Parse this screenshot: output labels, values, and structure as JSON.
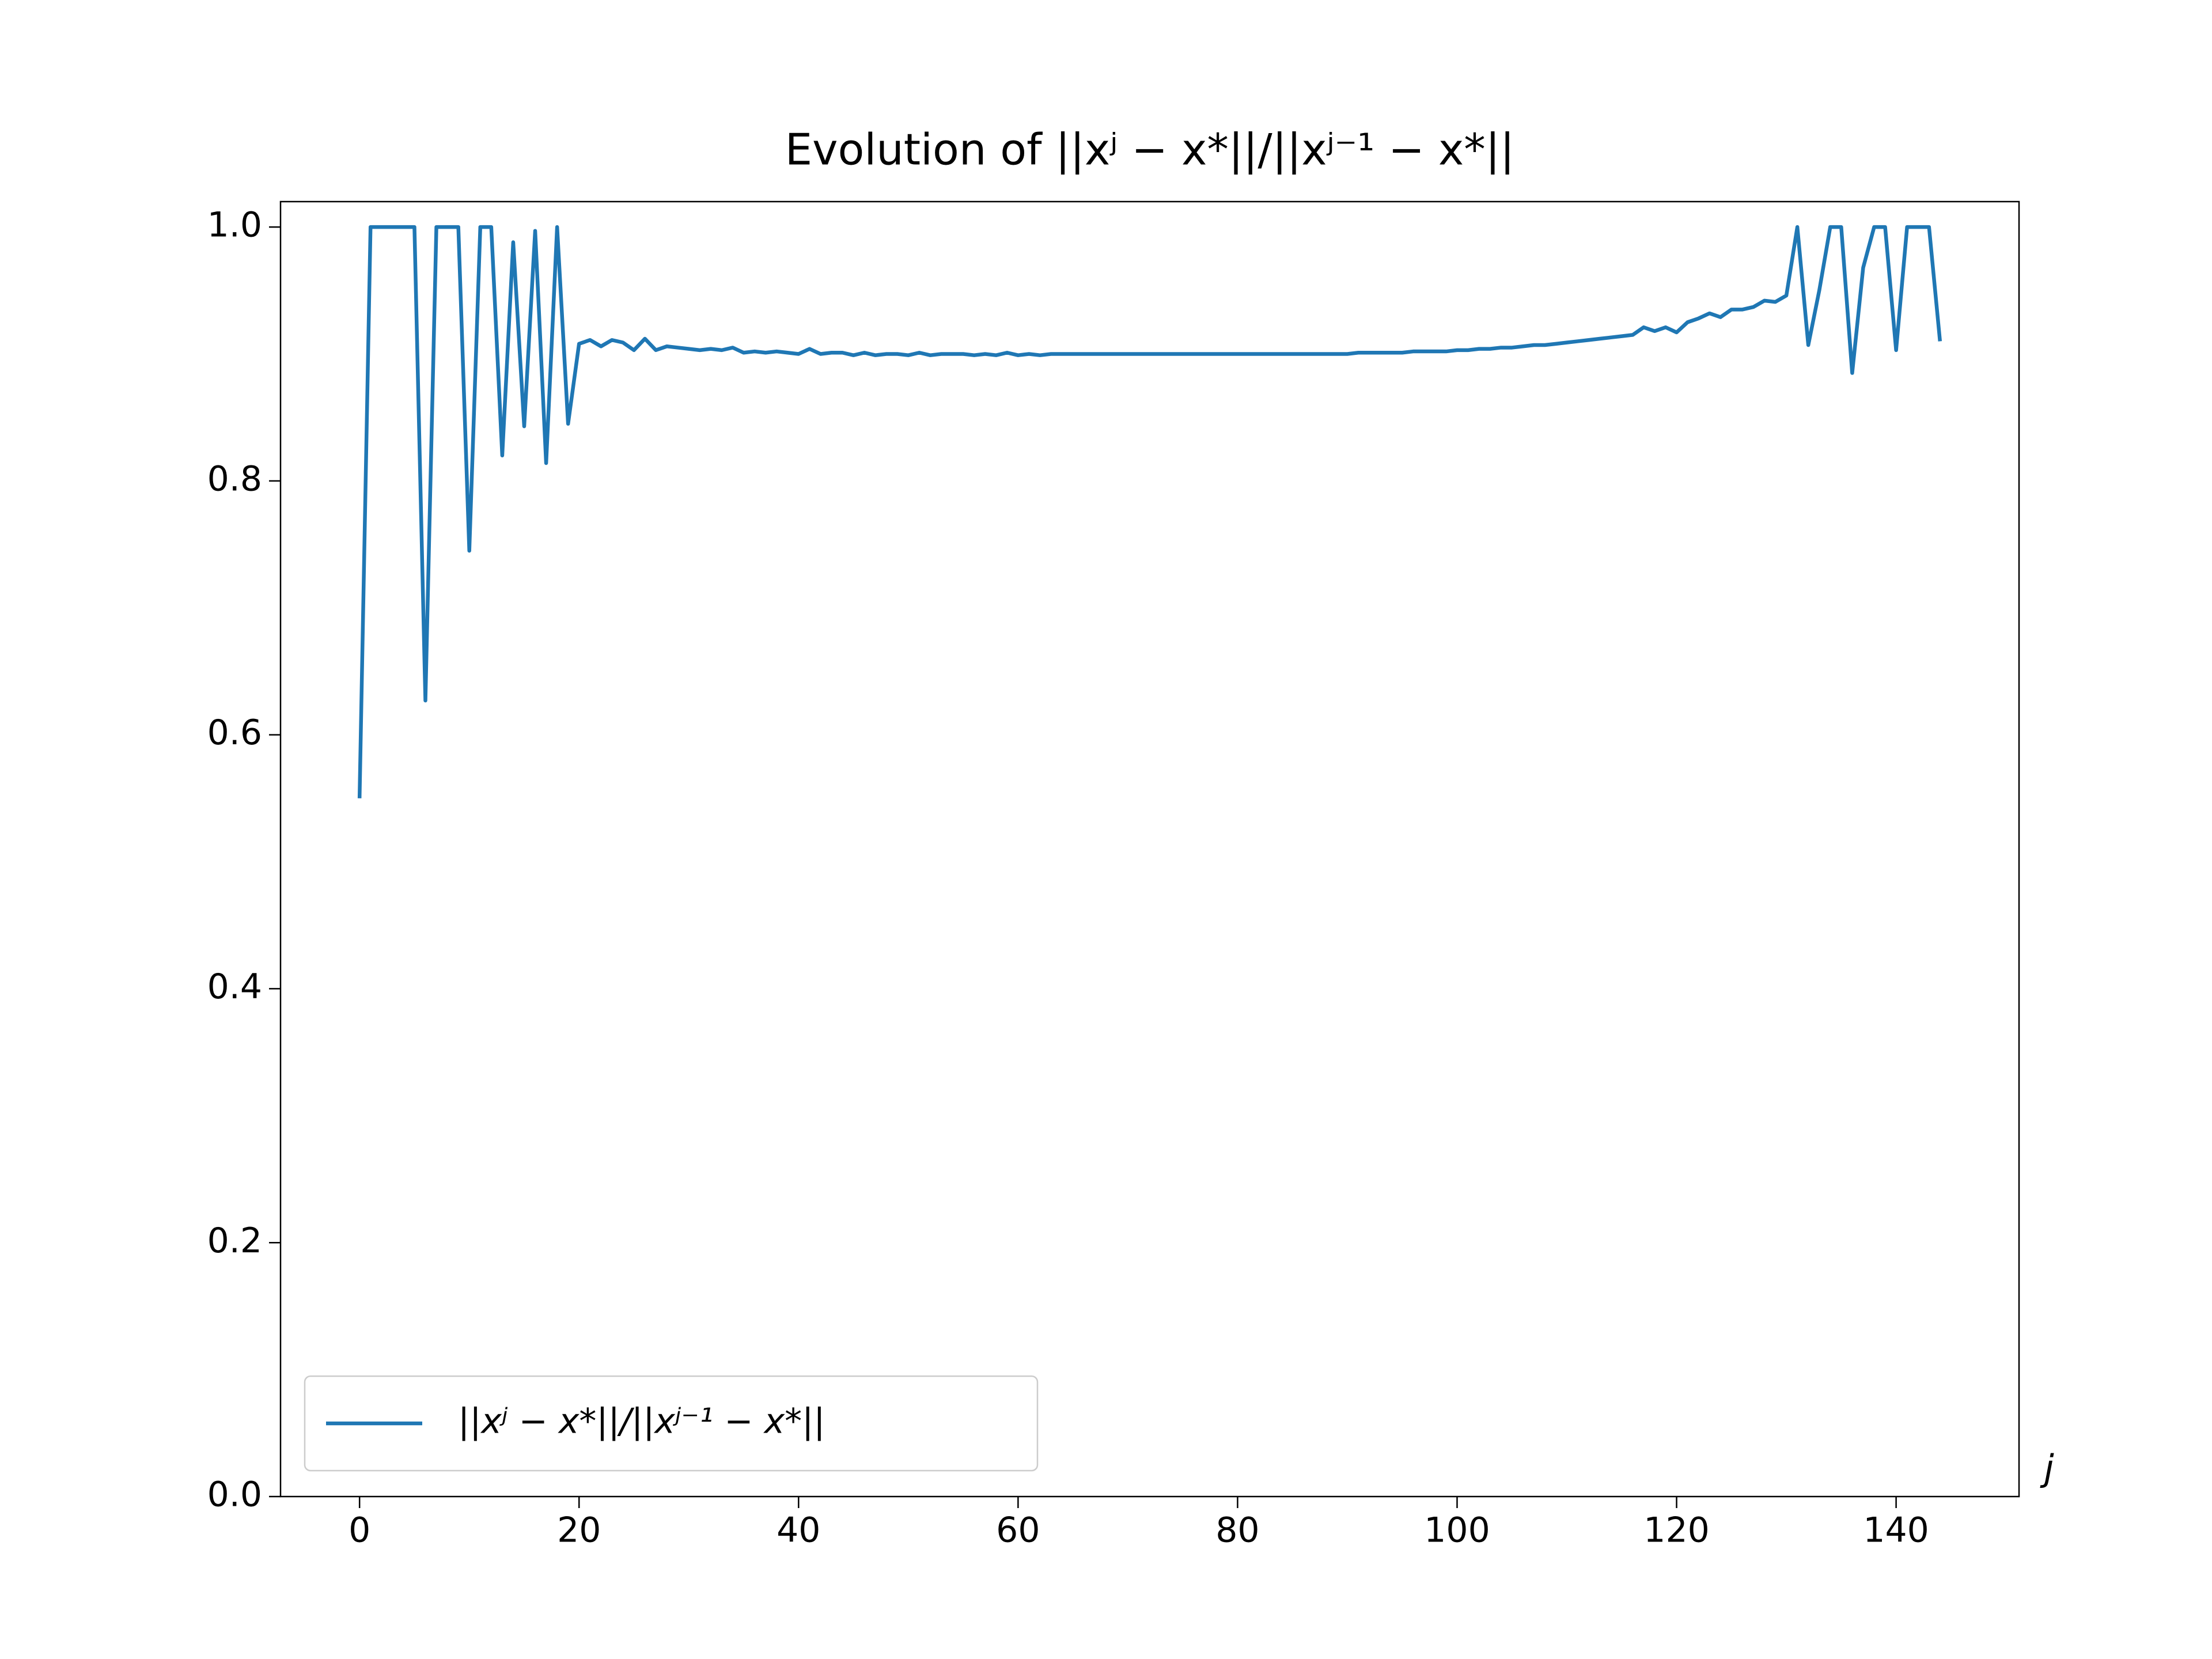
{
  "chart_data": {
    "type": "line",
    "title": "Evolution of ||xʲ − x*||/||xʲ⁻¹ − x*||",
    "x_label": "j",
    "x": [
      0,
      1,
      2,
      3,
      4,
      5,
      6,
      7,
      8,
      9,
      10,
      11,
      12,
      13,
      14,
      15,
      16,
      17,
      18,
      19,
      20,
      21,
      22,
      23,
      24,
      25,
      26,
      27,
      28,
      29,
      30,
      31,
      32,
      33,
      34,
      35,
      36,
      37,
      38,
      39,
      40,
      41,
      42,
      43,
      44,
      45,
      46,
      47,
      48,
      49,
      50,
      51,
      52,
      53,
      54,
      55,
      56,
      57,
      58,
      59,
      60,
      61,
      62,
      63,
      64,
      65,
      66,
      67,
      68,
      69,
      70,
      71,
      72,
      73,
      74,
      75,
      76,
      77,
      78,
      79,
      80,
      81,
      82,
      83,
      84,
      85,
      86,
      87,
      88,
      89,
      90,
      91,
      92,
      93,
      94,
      95,
      96,
      97,
      98,
      99,
      100,
      101,
      102,
      103,
      104,
      105,
      106,
      107,
      108,
      109,
      110,
      111,
      112,
      113,
      114,
      115,
      116,
      117,
      118,
      119,
      120,
      121,
      122,
      123,
      124,
      125,
      126,
      127,
      128,
      129,
      130,
      131,
      132,
      133,
      134,
      135,
      136,
      137,
      138,
      139,
      140,
      141,
      142,
      143,
      144
    ],
    "series": [
      {
        "name": "||xʲ − x*||/||xʲ⁻¹ − x*||",
        "color": "#1f77b4",
        "values": [
          0.55,
          1,
          1,
          1,
          1,
          1,
          0.627,
          1,
          1,
          1,
          0.745,
          1,
          1,
          0.82,
          0.988,
          0.843,
          0.997,
          0.814,
          1,
          0.845,
          0.908,
          0.911,
          0.906,
          0.911,
          0.909,
          0.903,
          0.912,
          0.903,
          0.906,
          0.905,
          0.904,
          0.903,
          0.904,
          0.903,
          0.905,
          0.901,
          0.902,
          0.901,
          0.902,
          0.901,
          0.9,
          0.904,
          0.9,
          0.901,
          0.901,
          0.899,
          0.901,
          0.899,
          0.9,
          0.9,
          0.899,
          0.901,
          0.899,
          0.9,
          0.9,
          0.9,
          0.899,
          0.9,
          0.899,
          0.901,
          0.899,
          0.9,
          0.899,
          0.9,
          0.9,
          0.9,
          0.9,
          0.9,
          0.9,
          0.9,
          0.9,
          0.9,
          0.9,
          0.9,
          0.9,
          0.9,
          0.9,
          0.9,
          0.9,
          0.9,
          0.9,
          0.9,
          0.9,
          0.9,
          0.9,
          0.9,
          0.9,
          0.9,
          0.9,
          0.9,
          0.9,
          0.901,
          0.901,
          0.901,
          0.901,
          0.901,
          0.902,
          0.902,
          0.902,
          0.902,
          0.903,
          0.903,
          0.904,
          0.904,
          0.905,
          0.905,
          0.906,
          0.907,
          0.907,
          0.908,
          0.909,
          0.91,
          0.911,
          0.912,
          0.913,
          0.914,
          0.915,
          0.921,
          0.918,
          0.921,
          0.917,
          0.925,
          0.928,
          0.932,
          0.929,
          0.935,
          0.935,
          0.937,
          0.942,
          0.941,
          0.946,
          1,
          0.907,
          0.95,
          1,
          1,
          0.885,
          0.968,
          1,
          1,
          0.903,
          1,
          1,
          1,
          0.91
        ]
      }
    ],
    "xlim": [
      -7.2,
      151.2
    ],
    "xticks": [
      0,
      20,
      40,
      60,
      80,
      100,
      120,
      140
    ],
    "ylim": [
      0,
      1.02
    ],
    "yticks": [
      {
        "value": 0,
        "label": "0.0"
      },
      {
        "value": 0.2,
        "label": "0.2"
      },
      {
        "value": 0.4,
        "label": "0.4"
      },
      {
        "value": 0.6,
        "label": "0.6"
      },
      {
        "value": 0.8,
        "label": "0.8"
      },
      {
        "value": 1,
        "label": "1.0"
      }
    ],
    "grid": false,
    "legend": "lower left"
  }
}
